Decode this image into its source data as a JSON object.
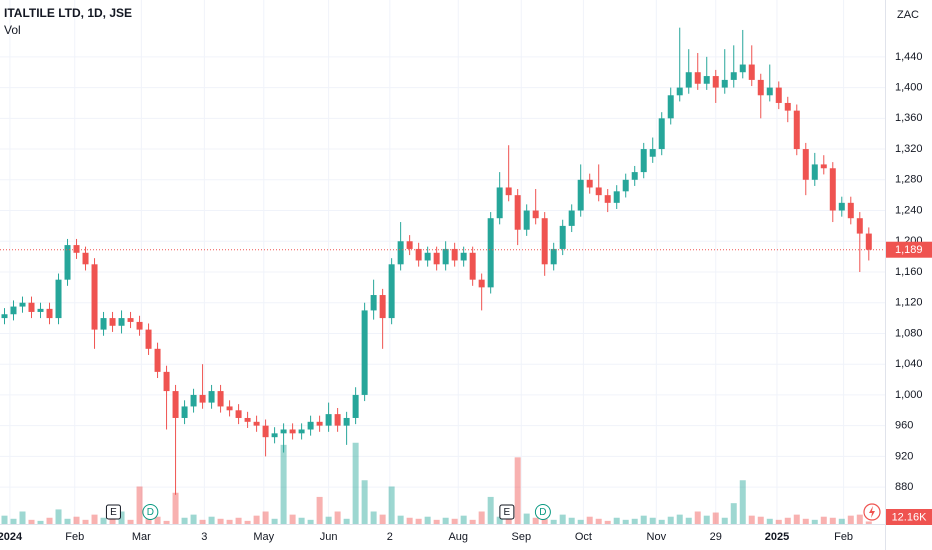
{
  "chart_data": {
    "type": "candlestick",
    "title": "ITALTILE LTD, 1D, JSE",
    "currency": "ZAC",
    "x": [
      0,
      1,
      2,
      3,
      4,
      5,
      6,
      7,
      8,
      9,
      10,
      11,
      12,
      13,
      14,
      15,
      16,
      17,
      18,
      19,
      20,
      21,
      22,
      23,
      24,
      25,
      26,
      27,
      28,
      29,
      30,
      31,
      32,
      33,
      34,
      35,
      36,
      37,
      38,
      39,
      40,
      41,
      42,
      43,
      44,
      45,
      46,
      47,
      48,
      49,
      50,
      51,
      52,
      53,
      54,
      55,
      56,
      57,
      58,
      59,
      60,
      61,
      62,
      63,
      64,
      65,
      66,
      67,
      68,
      69,
      70,
      71,
      72,
      73,
      74,
      75,
      76,
      77,
      78,
      79,
      80,
      81,
      82,
      83,
      84,
      85,
      86,
      87,
      88,
      89,
      90,
      91,
      92,
      93,
      94,
      95,
      96
    ],
    "open": [
      1100,
      1105,
      1115,
      1120,
      1108,
      1112,
      1100,
      1150,
      1195,
      1185,
      1170,
      1085,
      1100,
      1090,
      1100,
      1095,
      1085,
      1060,
      1030,
      1005,
      970,
      985,
      1000,
      990,
      1005,
      985,
      980,
      970,
      965,
      960,
      945,
      950,
      955,
      950,
      955,
      965,
      960,
      975,
      960,
      970,
      1000,
      1110,
      1130,
      1100,
      1170,
      1200,
      1190,
      1175,
      1185,
      1170,
      1190,
      1175,
      1185,
      1150,
      1140,
      1230,
      1270,
      1260,
      1215,
      1240,
      1230,
      1170,
      1190,
      1220,
      1240,
      1280,
      1270,
      1260,
      1250,
      1265,
      1280,
      1290,
      1310,
      1320,
      1360,
      1390,
      1400,
      1420,
      1405,
      1415,
      1400,
      1410,
      1420,
      1430,
      1410,
      1390,
      1400,
      1380,
      1370,
      1320,
      1280,
      1300,
      1295,
      1240,
      1250,
      1230,
      1210
    ],
    "high": [
      1113,
      1123,
      1128,
      1128,
      1120,
      1120,
      1158,
      1203,
      1203,
      1193,
      1178,
      1108,
      1108,
      1110,
      1108,
      1103,
      1093,
      1068,
      1038,
      1013,
      993,
      1008,
      1040,
      1013,
      1013,
      993,
      988,
      978,
      973,
      968,
      958,
      963,
      963,
      963,
      973,
      973,
      990,
      983,
      978,
      1010,
      1120,
      1150,
      1138,
      1178,
      1225,
      1208,
      1198,
      1193,
      1193,
      1200,
      1198,
      1193,
      1193,
      1158,
      1238,
      1290,
      1325,
      1268,
      1248,
      1268,
      1238,
      1198,
      1228,
      1248,
      1300,
      1288,
      1300,
      1268,
      1273,
      1288,
      1298,
      1328,
      1335,
      1368,
      1400,
      1478,
      1450,
      1445,
      1440,
      1423,
      1450,
      1455,
      1475,
      1455,
      1418,
      1430,
      1408,
      1388,
      1378,
      1328,
      1315,
      1312,
      1303,
      1258,
      1258,
      1238,
      1218
    ],
    "low": [
      1092,
      1097,
      1107,
      1100,
      1100,
      1092,
      1092,
      1142,
      1177,
      1162,
      1060,
      1077,
      1082,
      1080,
      1087,
      1077,
      1052,
      1022,
      955,
      870,
      962,
      977,
      982,
      982,
      977,
      972,
      962,
      957,
      952,
      920,
      937,
      925,
      942,
      942,
      947,
      952,
      952,
      952,
      935,
      962,
      992,
      1098,
      1060,
      1092,
      1162,
      1182,
      1167,
      1167,
      1162,
      1162,
      1167,
      1167,
      1142,
      1110,
      1132,
      1222,
      1252,
      1195,
      1207,
      1222,
      1155,
      1162,
      1182,
      1212,
      1232,
      1262,
      1252,
      1238,
      1242,
      1257,
      1272,
      1282,
      1302,
      1312,
      1352,
      1382,
      1392,
      1397,
      1397,
      1380,
      1392,
      1400,
      1412,
      1402,
      1360,
      1382,
      1372,
      1355,
      1312,
      1260,
      1272,
      1287,
      1225,
      1232,
      1222,
      1160,
      1175
    ],
    "close": [
      1105,
      1115,
      1120,
      1108,
      1112,
      1100,
      1150,
      1195,
      1185,
      1170,
      1085,
      1100,
      1090,
      1100,
      1095,
      1085,
      1060,
      1030,
      1005,
      970,
      985,
      1000,
      990,
      1005,
      985,
      980,
      970,
      965,
      960,
      945,
      950,
      955,
      950,
      955,
      965,
      960,
      975,
      960,
      970,
      1000,
      1110,
      1130,
      1100,
      1170,
      1200,
      1190,
      1175,
      1185,
      1170,
      1190,
      1175,
      1185,
      1150,
      1140,
      1230,
      1270,
      1260,
      1215,
      1240,
      1230,
      1170,
      1190,
      1220,
      1240,
      1280,
      1270,
      1260,
      1250,
      1265,
      1280,
      1290,
      1320,
      1320,
      1360,
      1390,
      1400,
      1420,
      1405,
      1415,
      1400,
      1410,
      1420,
      1430,
      1410,
      1390,
      1400,
      1380,
      1370,
      1320,
      1280,
      1300,
      1295,
      1240,
      1250,
      1230,
      1210,
      1189
    ],
    "up_color": "#26a69a",
    "down_color": "#ef5350",
    "volume": {
      "name": "Vol",
      "ylim": [
        0,
        480000
      ],
      "values": [
        40000,
        25000,
        60000,
        20000,
        15000,
        30000,
        70000,
        25000,
        35000,
        20000,
        45000,
        30000,
        25000,
        60000,
        20000,
        180000,
        40000,
        35000,
        15000,
        150000,
        30000,
        45000,
        20000,
        35000,
        25000,
        20000,
        30000,
        15000,
        40000,
        60000,
        25000,
        380000,
        45000,
        30000,
        20000,
        130000,
        35000,
        60000,
        25000,
        390000,
        210000,
        60000,
        45000,
        180000,
        40000,
        30000,
        25000,
        35000,
        20000,
        30000,
        25000,
        40000,
        20000,
        60000,
        130000,
        35000,
        45000,
        320000,
        50000,
        30000,
        25000,
        20000,
        45000,
        30000,
        20000,
        35000,
        25000,
        15000,
        30000,
        20000,
        25000,
        40000,
        30000,
        20000,
        35000,
        45000,
        30000,
        60000,
        40000,
        55000,
        30000,
        100000,
        210000,
        40000,
        35000,
        25000,
        20000,
        30000,
        45000,
        25000,
        20000,
        35000,
        30000,
        25000,
        40000,
        45000,
        12160
      ]
    },
    "volume_last": {
      "value": 12160,
      "label": "12.16K"
    },
    "last_price": {
      "value": 1189,
      "label": "1,189"
    },
    "events": [
      {
        "x": 12.1,
        "label": "E"
      },
      {
        "x": 16.2,
        "label": "D"
      },
      {
        "x": 55.8,
        "label": "E"
      },
      {
        "x": 59.8,
        "label": "D"
      }
    ],
    "xlim": [
      -0.5,
      97.8
    ],
    "xticks": [
      {
        "value": 0.6,
        "label": "2024"
      },
      {
        "value": 7.8,
        "label": "Feb"
      },
      {
        "value": 15.2,
        "label": "Mar"
      },
      {
        "value": 22.2,
        "label": "3"
      },
      {
        "value": 28.8,
        "label": "May"
      },
      {
        "value": 36,
        "label": "Jun"
      },
      {
        "value": 42.8,
        "label": "2"
      },
      {
        "value": 50.4,
        "label": "Aug"
      },
      {
        "value": 57.4,
        "label": "Sep"
      },
      {
        "value": 64.3,
        "label": "Oct"
      },
      {
        "value": 72.4,
        "label": "Nov"
      },
      {
        "value": 79,
        "label": "29"
      },
      {
        "value": 85.8,
        "label": "2025"
      },
      {
        "value": 93.2,
        "label": "Feb"
      }
    ],
    "ylim": [
      832,
      1514
    ],
    "yticks": [
      880,
      920,
      960,
      {
        "value": 1000,
        "label": "1,000"
      },
      {
        "value": 1040,
        "label": "1,040"
      },
      {
        "value": 1080,
        "label": "1,080"
      },
      {
        "value": 1120,
        "label": "1,120"
      },
      {
        "value": 1160,
        "label": "1,160"
      },
      {
        "value": 1200,
        "label": "1,200"
      },
      {
        "value": 1240,
        "label": "1,240"
      },
      {
        "value": 1280,
        "label": "1,280"
      },
      {
        "value": 1320,
        "label": "1,320"
      },
      {
        "value": 1360,
        "label": "1,360"
      },
      {
        "value": 1400,
        "label": "1,400"
      },
      {
        "value": 1440,
        "label": "1,440"
      }
    ],
    "grid": true
  }
}
